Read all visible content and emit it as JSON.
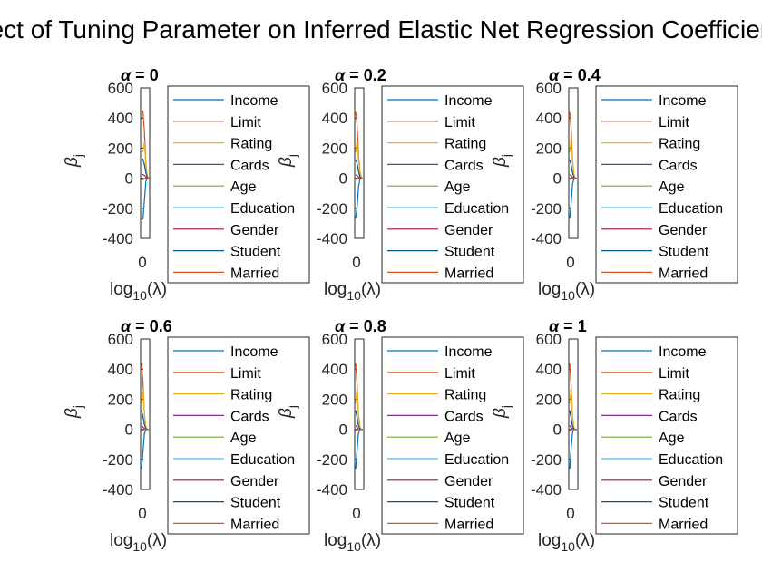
{
  "chart_data": {
    "title": "Effect of Tuning Parameter on Inferred Elastic Net Regression Coefficients",
    "series_colors": [
      "#0072BD",
      "#D95319",
      "#EDB120",
      "#7E2F8E",
      "#77AC30",
      "#4DBEEE",
      "#A2142F",
      "#005A8C",
      "#D95319"
    ],
    "panels": [
      {
        "type": "line",
        "title_prefix": "α",
        "title_eq": " = ",
        "alpha": "0",
        "xlabel_base": "log",
        "xlabel_sub": "10",
        "xlabel_arg": "(λ)",
        "ylabel_base": "β",
        "ylabel_sub": "j",
        "ylim": [
          -400,
          600
        ],
        "yticks": [
          "600",
          "400",
          "200",
          "0",
          "-200",
          "-400"
        ],
        "xticks": [
          "0"
        ],
        "legend": "right-outside",
        "series": [
          {
            "name": "Income",
            "values": [
              -275,
              -270,
              -150,
              -20,
              0,
              0
            ]
          },
          {
            "name": "Limit",
            "values": [
              450,
              445,
              310,
              100,
              10,
              0
            ]
          },
          {
            "name": "Rating",
            "values": [
              180,
              175,
              240,
              90,
              10,
              0
            ]
          },
          {
            "name": "Cards",
            "values": [
              25,
              24,
              18,
              8,
              2,
              0
            ]
          },
          {
            "name": "Age",
            "values": [
              -10,
              -10,
              -6,
              -2,
              0,
              0
            ]
          },
          {
            "name": "Education",
            "values": [
              -3,
              -3,
              -2,
              -1,
              0,
              0
            ]
          },
          {
            "name": "Gender",
            "values": [
              -5,
              -5,
              -3,
              -1,
              0,
              0
            ]
          },
          {
            "name": "Student",
            "values": [
              128,
              126,
              90,
              35,
              4,
              0
            ]
          },
          {
            "name": "Married",
            "values": [
              -6,
              -6,
              -4,
              -1,
              0,
              0
            ]
          }
        ]
      },
      {
        "type": "line",
        "title_prefix": "α",
        "title_eq": " = ",
        "alpha": "0.2",
        "xlabel_base": "log",
        "xlabel_sub": "10",
        "xlabel_arg": "(λ)",
        "ylabel_base": "β",
        "ylabel_sub": "j",
        "ylim": [
          -400,
          600
        ],
        "yticks": [
          "600",
          "400",
          "200",
          "0",
          "-200",
          "-400"
        ],
        "xticks": [
          "0"
        ],
        "legend": "right-outside",
        "series": [
          {
            "name": "Income",
            "values": [
              -265,
              -200,
              -60,
              -5,
              0,
              0
            ]
          },
          {
            "name": "Limit",
            "values": [
              440,
              360,
              150,
              40,
              5,
              0
            ]
          },
          {
            "name": "Rating",
            "values": [
              170,
              250,
              120,
              35,
              5,
              0
            ]
          },
          {
            "name": "Cards",
            "values": [
              24,
              18,
              8,
              2,
              0,
              0
            ]
          },
          {
            "name": "Age",
            "values": [
              -10,
              -7,
              -3,
              0,
              0,
              0
            ]
          },
          {
            "name": "Education",
            "values": [
              -3,
              -2,
              -1,
              0,
              0,
              0
            ]
          },
          {
            "name": "Gender",
            "values": [
              -5,
              -3,
              -1,
              0,
              0,
              0
            ]
          },
          {
            "name": "Student",
            "values": [
              125,
              100,
              45,
              10,
              1,
              0
            ]
          },
          {
            "name": "Married",
            "values": [
              -6,
              -4,
              -2,
              0,
              0,
              0
            ]
          }
        ]
      },
      {
        "type": "line",
        "title_prefix": "α",
        "title_eq": " = ",
        "alpha": "0.4",
        "xlabel_base": "log",
        "xlabel_sub": "10",
        "xlabel_arg": "(λ)",
        "ylabel_base": "β",
        "ylabel_sub": "j",
        "ylim": [
          -400,
          600
        ],
        "yticks": [
          "600",
          "400",
          "200",
          "0",
          "-200",
          "-400"
        ],
        "xticks": [
          "0"
        ],
        "legend": "right-outside",
        "series": [
          {
            "name": "Income",
            "values": [
              -265,
              -170,
              -40,
              0,
              0,
              0
            ]
          },
          {
            "name": "Limit",
            "values": [
              440,
              330,
              120,
              25,
              0,
              0
            ]
          },
          {
            "name": "Rating",
            "values": [
              170,
              260,
              110,
              25,
              0,
              0
            ]
          },
          {
            "name": "Cards",
            "values": [
              24,
              15,
              5,
              0,
              0,
              0
            ]
          },
          {
            "name": "Age",
            "values": [
              -10,
              -6,
              -2,
              0,
              0,
              0
            ]
          },
          {
            "name": "Education",
            "values": [
              -3,
              -2,
              0,
              0,
              0,
              0
            ]
          },
          {
            "name": "Gender",
            "values": [
              -5,
              -3,
              0,
              0,
              0,
              0
            ]
          },
          {
            "name": "Student",
            "values": [
              125,
              90,
              35,
              5,
              0,
              0
            ]
          },
          {
            "name": "Married",
            "values": [
              -6,
              -3,
              -1,
              0,
              0,
              0
            ]
          }
        ]
      },
      {
        "type": "line",
        "title_prefix": "α",
        "title_eq": " = ",
        "alpha": "0.6",
        "xlabel_base": "log",
        "xlabel_sub": "10",
        "xlabel_arg": "(λ)",
        "ylabel_base": "β",
        "ylabel_sub": "j",
        "ylim": [
          -400,
          600
        ],
        "yticks": [
          "600",
          "400",
          "200",
          "0",
          "-200",
          "-400"
        ],
        "xticks": [
          "0"
        ],
        "legend": "right-outside",
        "series": [
          {
            "name": "Income",
            "values": [
              -265,
              -150,
              -30,
              0,
              0,
              0
            ]
          },
          {
            "name": "Limit",
            "values": [
              440,
              310,
              100,
              15,
              0,
              0
            ]
          },
          {
            "name": "Rating",
            "values": [
              170,
              270,
              100,
              20,
              0,
              0
            ]
          },
          {
            "name": "Cards",
            "values": [
              24,
              14,
              4,
              0,
              0,
              0
            ]
          },
          {
            "name": "Age",
            "values": [
              -10,
              -5,
              -1,
              0,
              0,
              0
            ]
          },
          {
            "name": "Education",
            "values": [
              -3,
              -1,
              0,
              0,
              0,
              0
            ]
          },
          {
            "name": "Gender",
            "values": [
              -5,
              -2,
              0,
              0,
              0,
              0
            ]
          },
          {
            "name": "Student",
            "values": [
              125,
              85,
              30,
              3,
              0,
              0
            ]
          },
          {
            "name": "Married",
            "values": [
              -6,
              -3,
              0,
              0,
              0,
              0
            ]
          }
        ]
      },
      {
        "type": "line",
        "title_prefix": "α",
        "title_eq": " = ",
        "alpha": "0.8",
        "xlabel_base": "log",
        "xlabel_sub": "10",
        "xlabel_arg": "(λ)",
        "ylabel_base": "β",
        "ylabel_sub": "j",
        "ylim": [
          -400,
          600
        ],
        "yticks": [
          "600",
          "400",
          "200",
          "0",
          "-200",
          "-400"
        ],
        "xticks": [
          "0"
        ],
        "legend": "right-outside",
        "series": [
          {
            "name": "Income",
            "values": [
              -265,
              -140,
              -25,
              0,
              0,
              0
            ]
          },
          {
            "name": "Limit",
            "values": [
              440,
              300,
              90,
              10,
              0,
              0
            ]
          },
          {
            "name": "Rating",
            "values": [
              170,
              275,
              95,
              15,
              0,
              0
            ]
          },
          {
            "name": "Cards",
            "values": [
              24,
              13,
              3,
              0,
              0,
              0
            ]
          },
          {
            "name": "Age",
            "values": [
              -10,
              -5,
              -1,
              0,
              0,
              0
            ]
          },
          {
            "name": "Education",
            "values": [
              -3,
              -1,
              0,
              0,
              0,
              0
            ]
          },
          {
            "name": "Gender",
            "values": [
              -5,
              -2,
              0,
              0,
              0,
              0
            ]
          },
          {
            "name": "Student",
            "values": [
              125,
              80,
              25,
              2,
              0,
              0
            ]
          },
          {
            "name": "Married",
            "values": [
              -6,
              -2,
              0,
              0,
              0,
              0
            ]
          }
        ]
      },
      {
        "type": "line",
        "title_prefix": "α",
        "title_eq": " = ",
        "alpha": "1",
        "xlabel_base": "log",
        "xlabel_sub": "10",
        "xlabel_arg": "(λ)",
        "ylabel_base": "β",
        "ylabel_sub": "j",
        "ylim": [
          -400,
          600
        ],
        "yticks": [
          "600",
          "400",
          "200",
          "0",
          "-200",
          "-400"
        ],
        "xticks": [
          "0"
        ],
        "legend": "right-outside",
        "series": [
          {
            "name": "Income",
            "values": [
              -265,
              -130,
              -20,
              0,
              0,
              0
            ]
          },
          {
            "name": "Limit",
            "values": [
              440,
              290,
              80,
              8,
              0,
              0
            ]
          },
          {
            "name": "Rating",
            "values": [
              170,
              280,
              90,
              12,
              0,
              0
            ]
          },
          {
            "name": "Cards",
            "values": [
              24,
              12,
              3,
              0,
              0,
              0
            ]
          },
          {
            "name": "Age",
            "values": [
              -10,
              -4,
              -1,
              0,
              0,
              0
            ]
          },
          {
            "name": "Education",
            "values": [
              -3,
              -1,
              0,
              0,
              0,
              0
            ]
          },
          {
            "name": "Gender",
            "values": [
              -5,
              -2,
              0,
              0,
              0,
              0
            ]
          },
          {
            "name": "Student",
            "values": [
              125,
              75,
              20,
              1,
              0,
              0
            ]
          },
          {
            "name": "Married",
            "values": [
              -6,
              -2,
              0,
              0,
              0,
              0
            ]
          }
        ]
      }
    ]
  }
}
